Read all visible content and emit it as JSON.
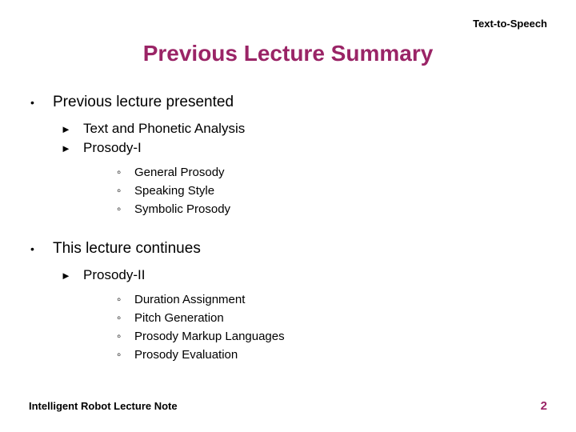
{
  "header": {
    "label": "Text-to-Speech"
  },
  "title": {
    "text": "Previous Lecture Summary",
    "color": "#9a2466"
  },
  "bullets": {
    "lvl1": "•",
    "lvl2": "►",
    "lvl3": "◦"
  },
  "sections": [
    {
      "text": "Previous lecture presented",
      "items": [
        {
          "text": "Text and Phonetic Analysis"
        },
        {
          "text": "Prosody-I",
          "sub": [
            "General Prosody",
            "Speaking Style",
            "Symbolic Prosody"
          ]
        }
      ]
    },
    {
      "text": "This lecture continues",
      "items": [
        {
          "text": "Prosody-II",
          "sub": [
            "Duration Assignment",
            "Pitch Generation",
            "Prosody Markup Languages",
            "Prosody Evaluation"
          ]
        }
      ]
    }
  ],
  "footer": {
    "left": "Intelligent Robot Lecture Note",
    "page": "2",
    "page_color": "#9a2466"
  }
}
